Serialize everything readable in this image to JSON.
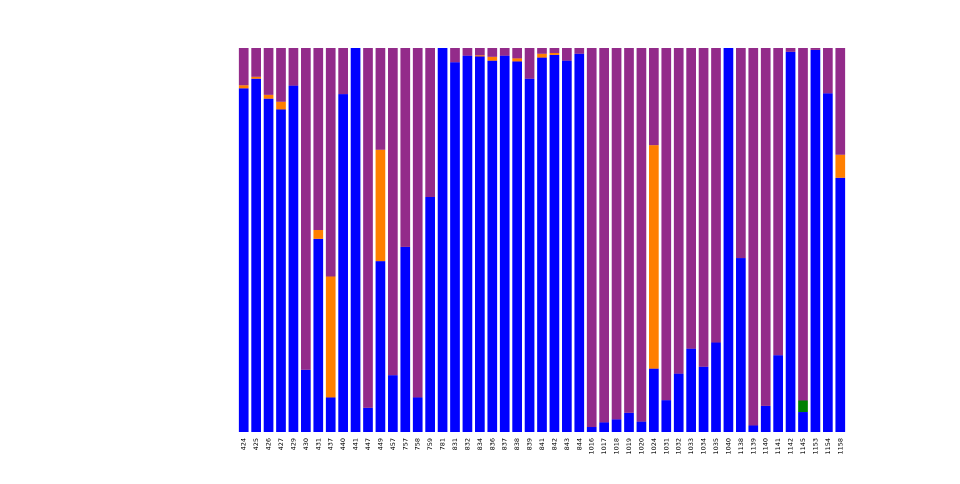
{
  "chart_data": {
    "type": "bar",
    "stacked": true,
    "normalized": true,
    "ylim": [
      0,
      1
    ],
    "grid": false,
    "legend": "none",
    "xlabel": "",
    "ylabel": "",
    "title": "",
    "categories": [
      "424",
      "425",
      "426",
      "427",
      "429",
      "430",
      "431",
      "437",
      "440",
      "441",
      "447",
      "449",
      "457",
      "757",
      "758",
      "759",
      "781",
      "831",
      "832",
      "834",
      "836",
      "837",
      "838",
      "839",
      "841",
      "842",
      "843",
      "844",
      "1016",
      "1017",
      "1018",
      "1019",
      "1020",
      "1024",
      "1031",
      "1032",
      "1033",
      "1034",
      "1035",
      "1040",
      "1138",
      "1139",
      "1140",
      "1141",
      "1142",
      "1145",
      "1153",
      "1154",
      "1158"
    ],
    "series": [
      {
        "color": "#0000ff",
        "values": [
          0.895,
          0.92,
          0.868,
          0.84,
          0.902,
          0.162,
          0.503,
          0.09,
          0.88,
          1.0,
          0.063,
          0.445,
          0.148,
          0.482,
          0.09,
          0.612,
          1.0,
          0.963,
          0.98,
          0.978,
          0.967,
          0.98,
          0.965,
          0.92,
          0.975,
          0.982,
          0.967,
          0.985,
          0.013,
          0.025,
          0.033,
          0.05,
          0.027,
          0.165,
          0.083,
          0.152,
          0.217,
          0.17,
          0.233,
          1.0,
          0.453,
          0.017,
          0.068,
          0.2,
          0.99,
          0.052,
          0.995,
          0.882,
          0.662
        ]
      },
      {
        "color": "#008000",
        "values": [
          0,
          0,
          0,
          0,
          0,
          0,
          0,
          0,
          0,
          0,
          0,
          0,
          0,
          0,
          0,
          0,
          0,
          0,
          0,
          0,
          0,
          0,
          0,
          0,
          0,
          0,
          0,
          0,
          0,
          0,
          0,
          0,
          0,
          0,
          0,
          0,
          0,
          0,
          0,
          0,
          0,
          0,
          0,
          0,
          0,
          0.03,
          0,
          0,
          0
        ]
      },
      {
        "color": "#ff7f00",
        "values": [
          0.008,
          0.005,
          0.01,
          0.02,
          0,
          0,
          0.023,
          0.315,
          0,
          0,
          0,
          0.29,
          0,
          0,
          0,
          0,
          0,
          0,
          0,
          0.003,
          0.01,
          0,
          0.008,
          0,
          0.01,
          0.005,
          0,
          0,
          0,
          0,
          0,
          0,
          0,
          0.582,
          0,
          0,
          0,
          0,
          0,
          0,
          0,
          0,
          0,
          0,
          0,
          0,
          0,
          0,
          0.06
        ]
      },
      {
        "color": "#932b8a",
        "values": [
          0.097,
          0.075,
          0.122,
          0.14,
          0.098,
          0.838,
          0.474,
          0.595,
          0.12,
          0,
          0.937,
          0.265,
          0.852,
          0.518,
          0.91,
          0.388,
          0,
          0.037,
          0.02,
          0.019,
          0.023,
          0.02,
          0.027,
          0.08,
          0.015,
          0.013,
          0.033,
          0.015,
          0.987,
          0.975,
          0.967,
          0.95,
          0.973,
          0.253,
          0.917,
          0.848,
          0.783,
          0.83,
          0.767,
          0,
          0.547,
          0.983,
          0.932,
          0.8,
          0.01,
          0.918,
          0.005,
          0.118,
          0.278
        ]
      }
    ]
  }
}
